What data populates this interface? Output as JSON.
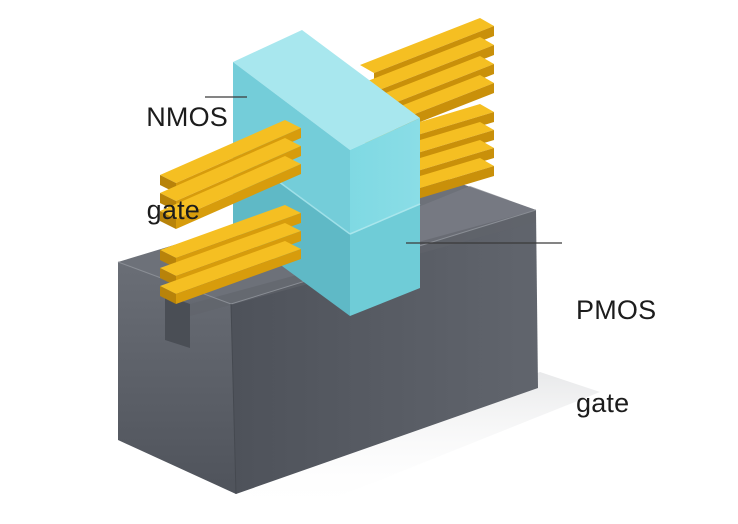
{
  "labels": {
    "nmos_gate_line1": "NMOS",
    "nmos_gate_line2": "gate",
    "pmos_gate_line1": "PMOS",
    "pmos_gate_line2": "gate"
  },
  "colors": {
    "background": "#ffffff",
    "substrate": "#5b6069",
    "fin_gold": "#f0b20a",
    "gate_cyan": "#6fd0dc",
    "leader_line": "#3a3a3a"
  }
}
